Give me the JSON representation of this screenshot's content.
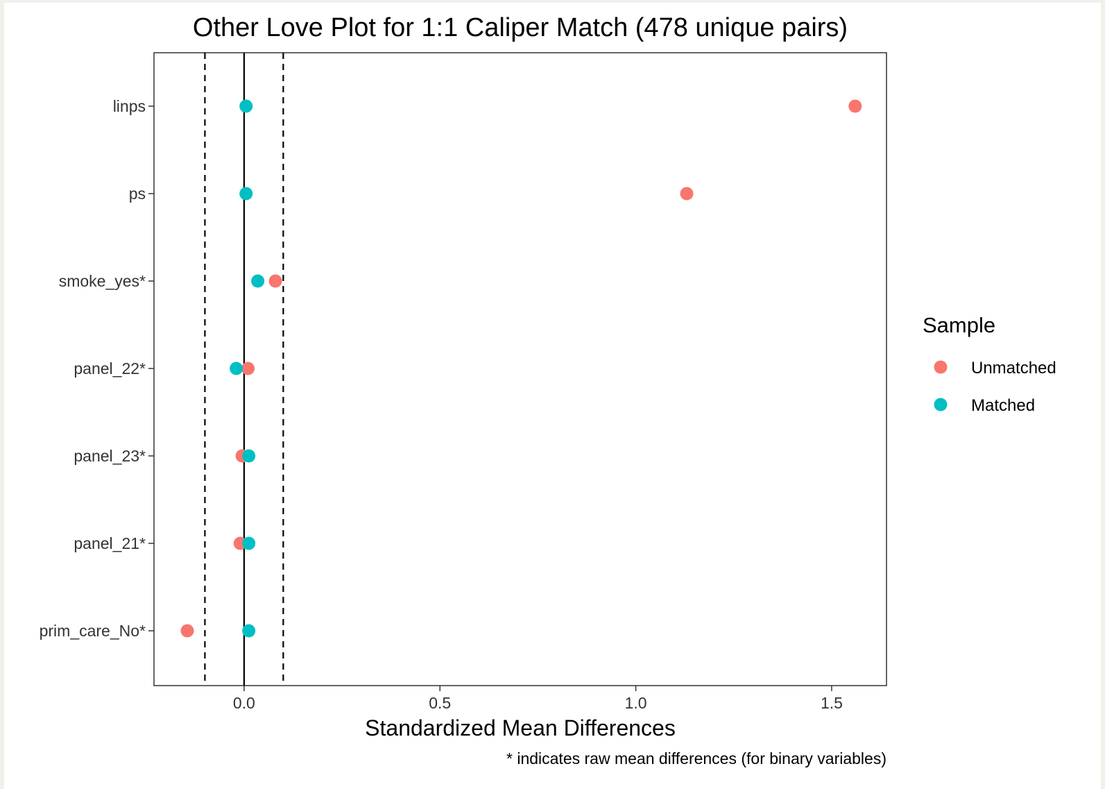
{
  "chart_data": {
    "type": "scatter",
    "title": "Other Love Plot for 1:1 Caliper Match (478 unique pairs)",
    "xlabel": "Standardized Mean Differences",
    "ylabel": "",
    "caption": "* indicates raw mean differences (for binary variables)",
    "xlim": [
      -0.23,
      1.64
    ],
    "x_ticks": [
      0.0,
      0.5,
      1.0,
      1.5
    ],
    "x_tick_labels": [
      "0.0",
      "0.5",
      "1.0",
      "1.5"
    ],
    "reference_lines": {
      "solid": 0.0,
      "dashed": [
        -0.1,
        0.1
      ]
    },
    "categories": [
      "linps",
      "ps",
      "smoke_yes*",
      "panel_22*",
      "panel_23*",
      "panel_21*",
      "prim_care_No*"
    ],
    "series": [
      {
        "name": "Unmatched",
        "color": "#F8766D",
        "values": [
          1.56,
          1.13,
          0.08,
          0.01,
          -0.005,
          -0.01,
          -0.145
        ]
      },
      {
        "name": "Matched",
        "color": "#00BFC4",
        "values": [
          0.005,
          0.005,
          0.035,
          -0.02,
          0.012,
          0.012,
          0.012
        ]
      }
    ],
    "legend": {
      "title": "Sample",
      "position": "right"
    },
    "grid": false
  }
}
